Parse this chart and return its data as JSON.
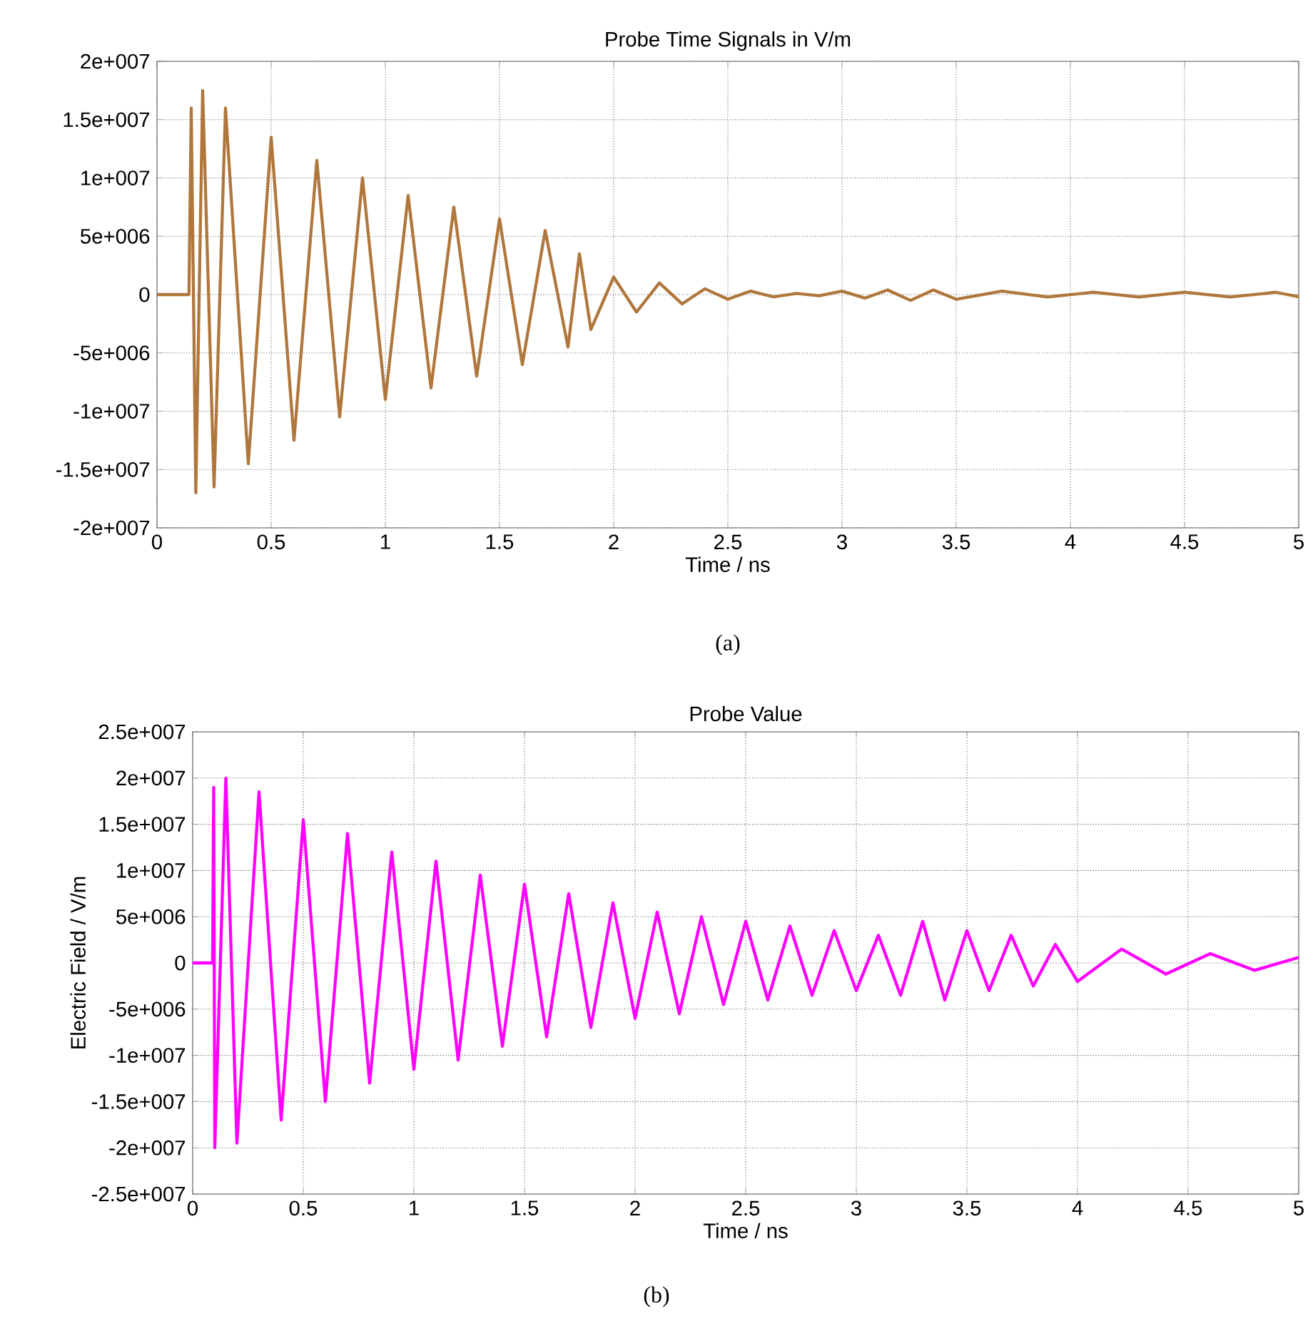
{
  "chart_data": [
    {
      "type": "line",
      "title": "Probe Time Signals in V/m",
      "xlabel": "Time / ns",
      "annotations": [
        "(a)"
      ],
      "series": [
        {
          "color": "#b0773c",
          "x": [
            0,
            0.14,
            0.15,
            0.17,
            0.2,
            0.25,
            0.3,
            0.4,
            0.5,
            0.6,
            0.7,
            0.8,
            0.9,
            1.0,
            1.1,
            1.2,
            1.3,
            1.4,
            1.5,
            1.6,
            1.7,
            1.8,
            1.85,
            1.9,
            2.0,
            2.1,
            2.2,
            2.3,
            2.4,
            2.5,
            2.6,
            2.7,
            2.8,
            2.9,
            3.0,
            3.1,
            3.2,
            3.3,
            3.4,
            3.5,
            3.7,
            3.9,
            4.1,
            4.3,
            4.5,
            4.7,
            4.9,
            5.0
          ],
          "values": [
            0,
            0,
            16000000,
            -17000000,
            17500000,
            -16500000,
            16000000,
            -14500000,
            13500000,
            -12500000,
            11500000,
            -10500000,
            10000000,
            -9000000,
            8500000,
            -8000000,
            7500000,
            -7000000,
            6500000,
            -6000000,
            5500000,
            -4500000,
            3500000,
            -3000000,
            1500000,
            -1500000,
            1000000,
            -800000,
            500000,
            -400000,
            300000,
            -200000,
            100000,
            -100000,
            300000,
            -300000,
            400000,
            -500000,
            400000,
            -400000,
            300000,
            -200000,
            200000,
            -200000,
            200000,
            -200000,
            200000,
            -200000
          ]
        }
      ],
      "xlim": [
        0,
        5
      ],
      "xticks": [
        0,
        0.5,
        1,
        1.5,
        2,
        2.5,
        3,
        3.5,
        4,
        4.5,
        5
      ],
      "ylim": [
        -20000000,
        20000000
      ],
      "yticks": [
        {
          "value": -20000000,
          "label": "-2e+007"
        },
        {
          "value": -15000000,
          "label": "-1.5e+007"
        },
        {
          "value": -10000000,
          "label": "-1e+007"
        },
        {
          "value": -5000000,
          "label": "-5e+006"
        },
        {
          "value": 0,
          "label": "0"
        },
        {
          "value": 5000000,
          "label": "5e+006"
        },
        {
          "value": 10000000,
          "label": "1e+007"
        },
        {
          "value": 15000000,
          "label": "1.5e+007"
        },
        {
          "value": 20000000,
          "label": "2e+007"
        }
      ],
      "grid": true,
      "line_style": "solid"
    },
    {
      "type": "line",
      "title": "Probe Value",
      "xlabel": "Time / ns",
      "ylabel": "Electric Field / V/m",
      "annotations": [
        "(b)"
      ],
      "series": [
        {
          "color": "#ff00ff",
          "x": [
            0,
            0.09,
            0.095,
            0.1,
            0.15,
            0.2,
            0.3,
            0.4,
            0.5,
            0.6,
            0.7,
            0.8,
            0.9,
            1.0,
            1.1,
            1.2,
            1.3,
            1.4,
            1.5,
            1.6,
            1.7,
            1.8,
            1.9,
            2.0,
            2.1,
            2.2,
            2.3,
            2.4,
            2.5,
            2.6,
            2.7,
            2.8,
            2.9,
            3.0,
            3.1,
            3.2,
            3.3,
            3.4,
            3.5,
            3.6,
            3.7,
            3.8,
            3.9,
            4.0,
            4.2,
            4.4,
            4.6,
            4.8,
            5.0
          ],
          "values": [
            0,
            0,
            19000000,
            -20000000,
            20000000,
            -19500000,
            18500000,
            -17000000,
            15500000,
            -15000000,
            14000000,
            -13000000,
            12000000,
            -11500000,
            11000000,
            -10500000,
            9500000,
            -9000000,
            8500000,
            -8000000,
            7500000,
            -7000000,
            6500000,
            -6000000,
            5500000,
            -5500000,
            5000000,
            -4500000,
            4500000,
            -4000000,
            4000000,
            -3500000,
            3500000,
            -3000000,
            3000000,
            -3500000,
            4500000,
            -4000000,
            3500000,
            -3000000,
            3000000,
            -2500000,
            2000000,
            -2000000,
            1500000,
            -1200000,
            1000000,
            -800000,
            600000
          ]
        }
      ],
      "xlim": [
        0,
        5
      ],
      "xticks": [
        0,
        0.5,
        1,
        1.5,
        2,
        2.5,
        3,
        3.5,
        4,
        4.5,
        5
      ],
      "ylim": [
        -25000000,
        25000000
      ],
      "yticks": [
        {
          "value": -25000000,
          "label": "-2.5e+007"
        },
        {
          "value": -20000000,
          "label": "-2e+007"
        },
        {
          "value": -15000000,
          "label": "-1.5e+007"
        },
        {
          "value": -10000000,
          "label": "-1e+007"
        },
        {
          "value": -5000000,
          "label": "-5e+006"
        },
        {
          "value": 0,
          "label": "0"
        },
        {
          "value": 5000000,
          "label": "5e+006"
        },
        {
          "value": 10000000,
          "label": "1e+007"
        },
        {
          "value": 15000000,
          "label": "1.5e+007"
        },
        {
          "value": 20000000,
          "label": "2e+007"
        },
        {
          "value": 25000000,
          "label": "2.5e+007"
        }
      ],
      "grid": true,
      "line_style": "solid"
    }
  ]
}
